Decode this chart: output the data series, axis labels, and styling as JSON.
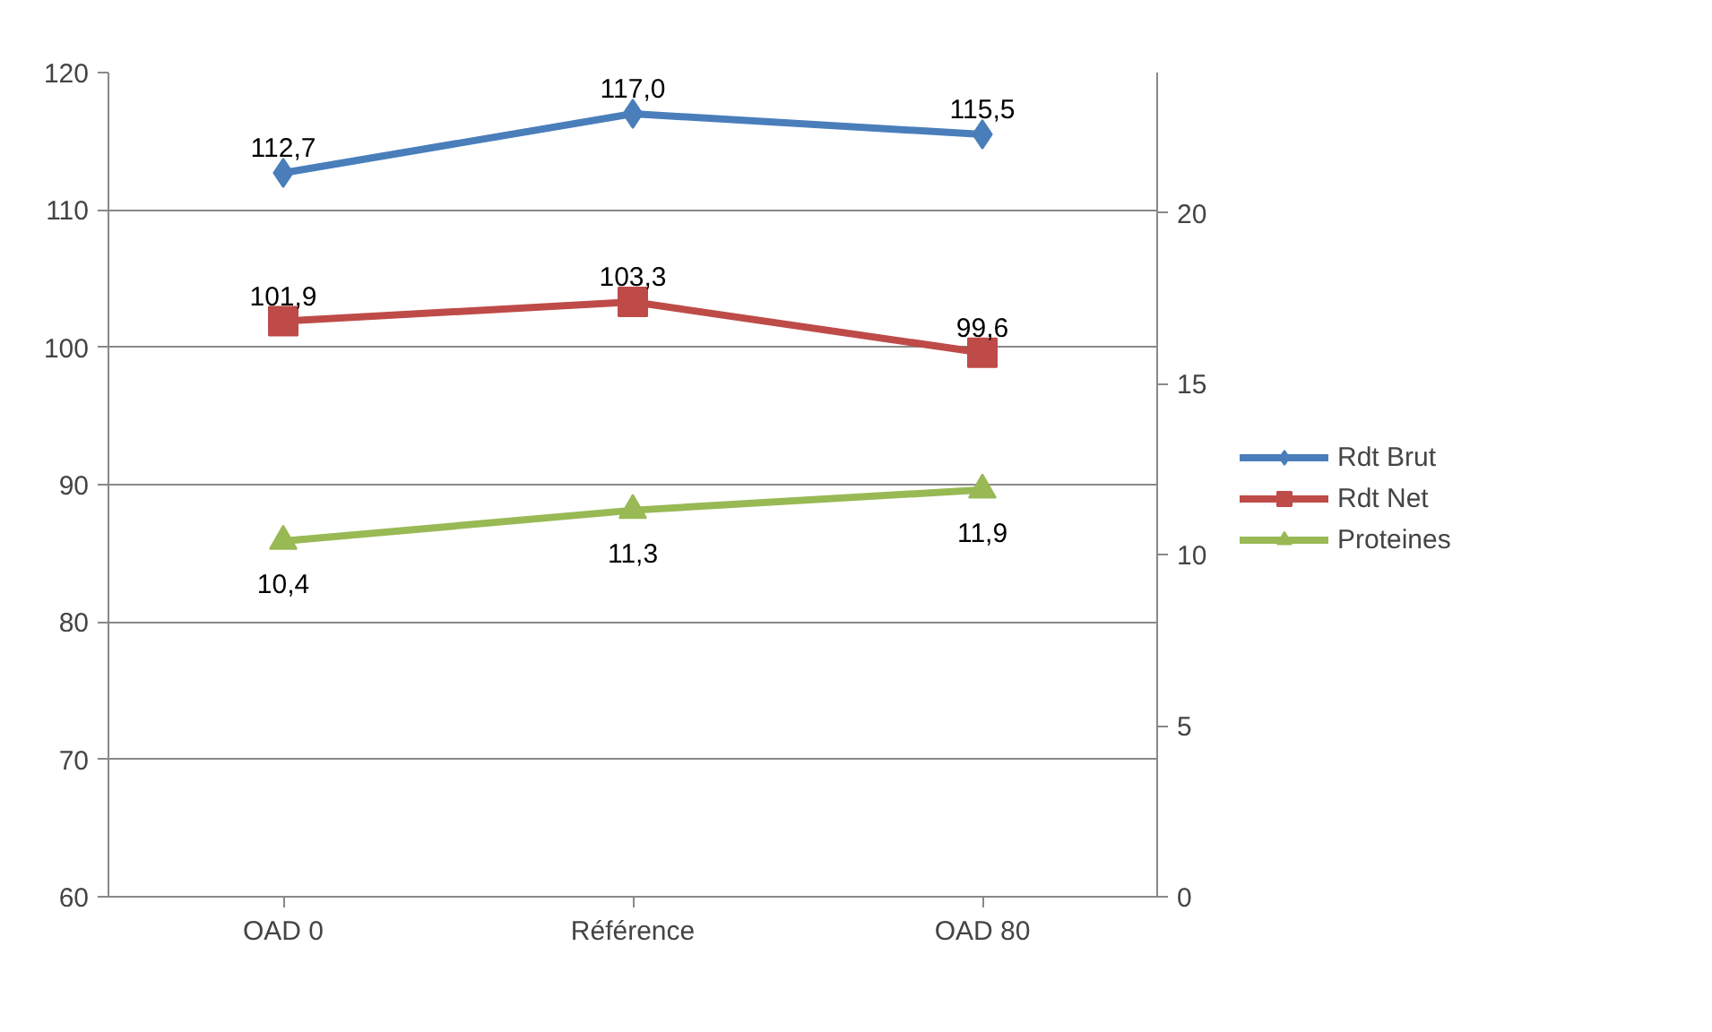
{
  "chart_data": {
    "type": "line",
    "categories": [
      "OAD 0",
      "Référence",
      "OAD 80"
    ],
    "series": [
      {
        "name": "Rdt Brut",
        "color": "#4a7ebb",
        "values": [
          112.7,
          117.0,
          115.5
        ],
        "value_labels": [
          "112,7",
          "117,0",
          "115,5"
        ],
        "marker": "diamond"
      },
      {
        "name": "Rdt Net",
        "color": "#be4b48",
        "values": [
          101.9,
          103.3,
          99.6
        ],
        "value_labels": [
          "101,9",
          "103,3",
          "99,6"
        ],
        "marker": "square"
      },
      {
        "name": "Proteines",
        "color": "#98b954",
        "values": [
          10.4,
          11.3,
          11.9
        ],
        "value_labels": [
          "10,4",
          "11,3",
          "11,9"
        ],
        "marker": "triangle",
        "axis": "y2"
      }
    ],
    "ylim": [
      60,
      120
    ],
    "yticks": [
      60,
      70,
      80,
      90,
      100,
      110,
      120
    ],
    "y2lim": [
      0,
      24.1
    ],
    "y2ticks": [
      0,
      5,
      10,
      15,
      20
    ],
    "grid": "y",
    "legend": "right",
    "line_style": "solid"
  }
}
